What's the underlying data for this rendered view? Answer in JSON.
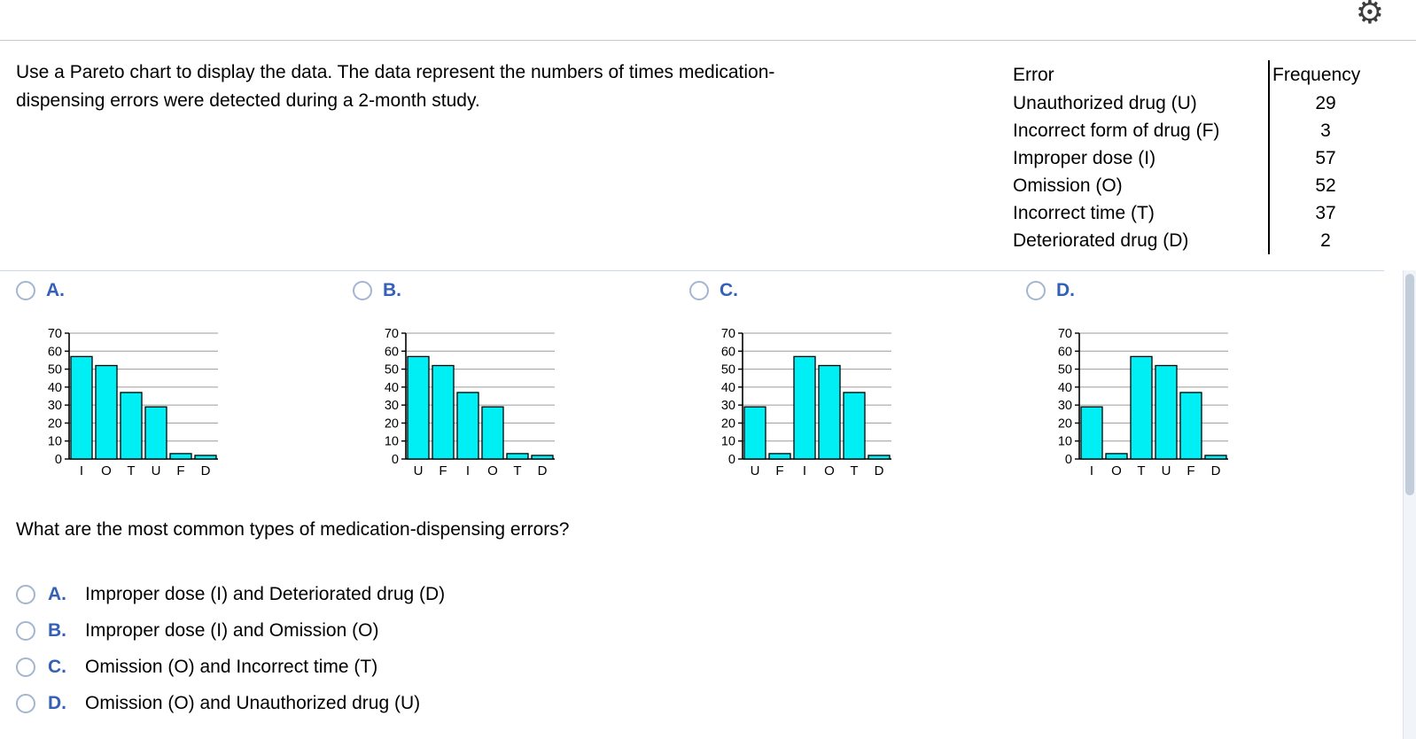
{
  "topbar": {
    "gear_icon": "⚙"
  },
  "question": {
    "prompt": "Use a Pareto chart to display the data. The data represent the numbers of times medication-dispensing errors were detected during a 2-month study."
  },
  "table": {
    "headers": {
      "error": "Error",
      "frequency": "Frequency"
    },
    "rows": [
      {
        "error": "Unauthorized drug (U)",
        "frequency": "29"
      },
      {
        "error": "Incorrect form of drug (F)",
        "frequency": "3"
      },
      {
        "error": "Improper dose (I)",
        "frequency": "57"
      },
      {
        "error": "Omission (O)",
        "frequency": "52"
      },
      {
        "error": "Incorrect time (T)",
        "frequency": "37"
      },
      {
        "error": "Deteriorated drug (D)",
        "frequency": "2"
      }
    ]
  },
  "chart_options": [
    {
      "letter": "A."
    },
    {
      "letter": "B."
    },
    {
      "letter": "C."
    },
    {
      "letter": "D."
    }
  ],
  "chart_data": [
    {
      "type": "bar",
      "option": "A",
      "categories": [
        "I",
        "O",
        "T",
        "U",
        "F",
        "D"
      ],
      "values": [
        57,
        52,
        37,
        29,
        3,
        2
      ],
      "ylim": [
        0,
        70
      ],
      "yticks": [
        0,
        10,
        20,
        30,
        40,
        50,
        60,
        70
      ],
      "bar_color": "#00EFF4",
      "grid": true
    },
    {
      "type": "bar",
      "option": "B",
      "categories": [
        "U",
        "F",
        "I",
        "O",
        "T",
        "D"
      ],
      "values": [
        57,
        52,
        37,
        29,
        3,
        2
      ],
      "ylim": [
        0,
        70
      ],
      "yticks": [
        0,
        10,
        20,
        30,
        40,
        50,
        60,
        70
      ],
      "bar_color": "#00EFF4",
      "grid": true
    },
    {
      "type": "bar",
      "option": "C",
      "categories": [
        "U",
        "F",
        "I",
        "O",
        "T",
        "D"
      ],
      "values": [
        29,
        3,
        57,
        52,
        37,
        2
      ],
      "ylim": [
        0,
        70
      ],
      "yticks": [
        0,
        10,
        20,
        30,
        40,
        50,
        60,
        70
      ],
      "bar_color": "#00EFF4",
      "grid": true
    },
    {
      "type": "bar",
      "option": "D",
      "categories": [
        "I",
        "O",
        "T",
        "U",
        "F",
        "D"
      ],
      "values": [
        29,
        3,
        57,
        52,
        37,
        2
      ],
      "ylim": [
        0,
        70
      ],
      "yticks": [
        0,
        10,
        20,
        30,
        40,
        50,
        60,
        70
      ],
      "bar_color": "#00EFF4",
      "grid": true
    }
  ],
  "followup": {
    "question": "What are the most common types of medication-dispensing errors?",
    "options": [
      {
        "letter": "A.",
        "text": "Improper dose (I) and Deteriorated drug (D)"
      },
      {
        "letter": "B.",
        "text": "Improper dose (I) and Omission (O)"
      },
      {
        "letter": "C.",
        "text": "Omission (O) and Incorrect time (T)"
      },
      {
        "letter": "D.",
        "text": "Omission (O) and Unauthorized drug (U)"
      }
    ]
  }
}
